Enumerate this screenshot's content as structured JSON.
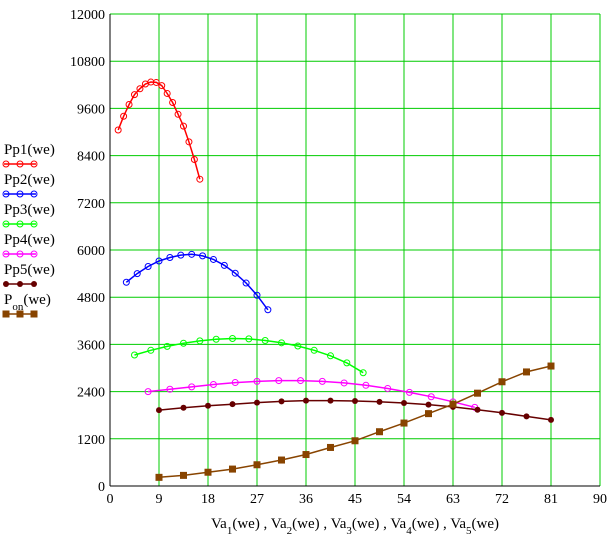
{
  "chart_data": {
    "type": "line",
    "title": "",
    "xlabel": "Va1(we) , Va2(we) , Va3(we) , Va4(we) , Va5(we)",
    "xlabel_parts": [
      {
        "base": "Va",
        "sub": "1",
        "rest": "(we) , "
      },
      {
        "base": "Va",
        "sub": "2",
        "rest": "(we) , "
      },
      {
        "base": "Va",
        "sub": "3",
        "rest": "(we) , "
      },
      {
        "base": "Va",
        "sub": "4",
        "rest": "(we) , "
      },
      {
        "base": "Va",
        "sub": "5",
        "rest": "(we)"
      }
    ],
    "ylabel": "",
    "xlim": [
      0,
      90
    ],
    "ylim": [
      0,
      12000
    ],
    "xticks": [
      0,
      9,
      18,
      27,
      36,
      45,
      54,
      63,
      72,
      81,
      90
    ],
    "yticks": [
      0,
      1200,
      2400,
      3600,
      4800,
      6000,
      7200,
      8400,
      9600,
      10800,
      12000
    ],
    "grid": true,
    "grid_color": "#00cc00",
    "legend_position": "left",
    "series": [
      {
        "name": "Pp1(we)",
        "label_base": "Pp1",
        "label_sub": "",
        "label_rest": "(we)",
        "color": "#ff0000",
        "marker": "circle",
        "x": [
          1.5,
          2.5,
          3.5,
          4.5,
          5.5,
          6.5,
          7.5,
          8.5,
          9.5,
          10.5,
          11.5,
          12.5,
          13.5,
          14.5,
          15.5,
          16.5
        ],
        "y": [
          9050,
          9400,
          9700,
          9950,
          10100,
          10220,
          10270,
          10260,
          10180,
          9980,
          9750,
          9450,
          9150,
          8750,
          8300,
          7800
        ]
      },
      {
        "name": "Pp2(we)",
        "label_base": "Pp2",
        "label_sub": "",
        "label_rest": "(we)",
        "color": "#0000ff",
        "marker": "circle",
        "x": [
          3,
          5,
          7,
          9,
          11,
          13,
          15,
          17,
          19,
          21,
          23,
          25,
          27,
          29
        ],
        "y": [
          5180,
          5400,
          5580,
          5720,
          5810,
          5870,
          5890,
          5850,
          5760,
          5610,
          5410,
          5160,
          4850,
          4480
        ]
      },
      {
        "name": "Pp3(we)",
        "label_base": "Pp3",
        "label_sub": "",
        "label_rest": "(we)",
        "color": "#00ff00",
        "marker": "circle",
        "x": [
          4.5,
          7.5,
          10.5,
          13.5,
          16.5,
          19.5,
          22.5,
          25.5,
          28.5,
          31.5,
          34.5,
          37.5,
          40.5,
          43.5,
          46.5
        ],
        "y": [
          3330,
          3450,
          3550,
          3630,
          3690,
          3730,
          3750,
          3740,
          3700,
          3640,
          3560,
          3450,
          3310,
          3130,
          2880
        ]
      },
      {
        "name": "Pp4(we)",
        "label_base": "Pp4",
        "label_sub": "",
        "label_rest": "(we)",
        "color": "#ff00ff",
        "marker": "circle",
        "x": [
          7,
          11,
          15,
          19,
          23,
          27,
          31,
          35,
          39,
          43,
          47,
          51,
          55,
          59,
          63,
          67
        ],
        "y": [
          2400,
          2460,
          2520,
          2580,
          2630,
          2660,
          2680,
          2680,
          2660,
          2620,
          2560,
          2480,
          2380,
          2270,
          2140,
          2000
        ]
      },
      {
        "name": "Pp5(we)",
        "label_base": "Pp5",
        "label_sub": "",
        "label_rest": "(we)",
        "color": "#660000",
        "marker": "filled-circle",
        "x": [
          9,
          13.5,
          18,
          22.5,
          27,
          31.5,
          36,
          40.5,
          45,
          49.5,
          54,
          58.5,
          63,
          67.5,
          72,
          76.5,
          81
        ],
        "y": [
          1930,
          1990,
          2040,
          2080,
          2120,
          2150,
          2170,
          2170,
          2160,
          2140,
          2110,
          2070,
          2010,
          1940,
          1860,
          1770,
          1680
        ]
      },
      {
        "name": "Pon(we)",
        "label_base": "P",
        "label_sub": "on",
        "label_rest": "(we)",
        "color": "#884400",
        "marker": "square",
        "x": [
          9,
          13.5,
          18,
          22.5,
          27,
          31.5,
          36,
          40.5,
          45,
          49.5,
          54,
          58.5,
          63,
          67.5,
          72,
          76.5,
          81
        ],
        "y": [
          220,
          270,
          350,
          430,
          540,
          660,
          800,
          980,
          1150,
          1380,
          1600,
          1840,
          2080,
          2360,
          2650,
          2900,
          3050
        ]
      }
    ]
  }
}
